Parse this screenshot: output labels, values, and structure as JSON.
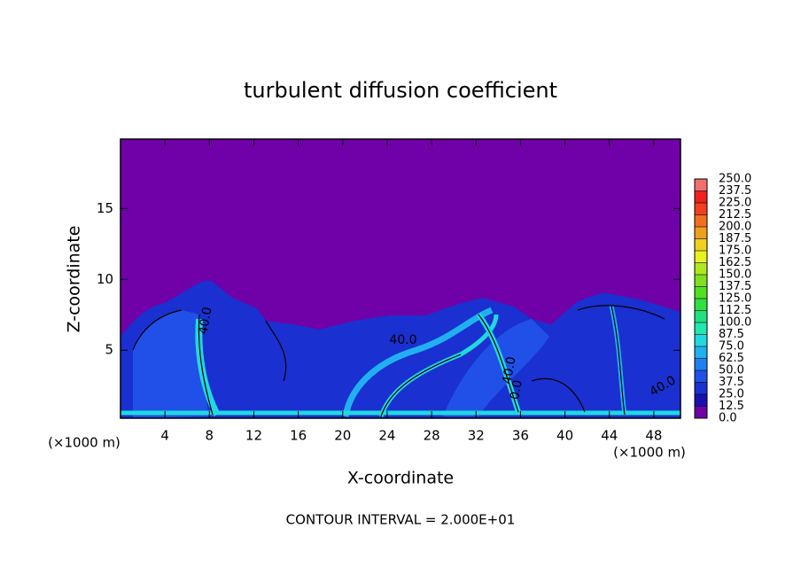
{
  "chart_data": {
    "type": "contour",
    "title": "turbulent diffusion coefficient",
    "x_label": "X-coordinate",
    "y_label": "Z-coordinate",
    "unit_label": "(×1000 m)",
    "footer": "CONTOUR INTERVAL = 2.000E+01",
    "xlim": [
      0,
      50.4
    ],
    "xticks": [
      4,
      8,
      12,
      16,
      20,
      24,
      28,
      32,
      36,
      40,
      44,
      48
    ],
    "ylim": [
      0.2,
      19.9
    ],
    "yticks": [
      5,
      10,
      15
    ],
    "colorbar": {
      "ticks": [
        {
          "value": 0,
          "label": "0.0"
        },
        {
          "value": 12.5,
          "label": "12.5"
        },
        {
          "value": 25,
          "label": "25.0"
        },
        {
          "value": 37.5,
          "label": "37.5"
        },
        {
          "value": 50,
          "label": "50.0"
        },
        {
          "value": 62.5,
          "label": "62.5"
        },
        {
          "value": 75,
          "label": "75.0"
        },
        {
          "value": 87.5,
          "label": "87.5"
        },
        {
          "value": 100,
          "label": "100.0"
        },
        {
          "value": 112.5,
          "label": "112.5"
        },
        {
          "value": 125,
          "label": "125.0"
        },
        {
          "value": 137.5,
          "label": "137.5"
        },
        {
          "value": 150,
          "label": "150.0"
        },
        {
          "value": 162.5,
          "label": "162.5"
        },
        {
          "value": 175,
          "label": "175.0"
        },
        {
          "value": 187.5,
          "label": "187.5"
        },
        {
          "value": 200,
          "label": "200.0"
        },
        {
          "value": 212.5,
          "label": "212.5"
        },
        {
          "value": 225,
          "label": "225.0"
        },
        {
          "value": 237.5,
          "label": "237.5"
        },
        {
          "value": 250,
          "label": "250.0"
        }
      ],
      "colors": [
        "#7000a8",
        "#1a10b0",
        "#1a30d0",
        "#2050e8",
        "#2080f0",
        "#20b0f0",
        "#20d8e0",
        "#20e8b0",
        "#20e080",
        "#30e040",
        "#50e020",
        "#80e020",
        "#b0e820",
        "#e8f020",
        "#f0d020",
        "#f0a020",
        "#f07020",
        "#f04020",
        "#f02020",
        "#f07070"
      ]
    },
    "annotations": [
      "40.0",
      "40.0",
      "40.0",
      "0.0",
      "40.0"
    ]
  }
}
